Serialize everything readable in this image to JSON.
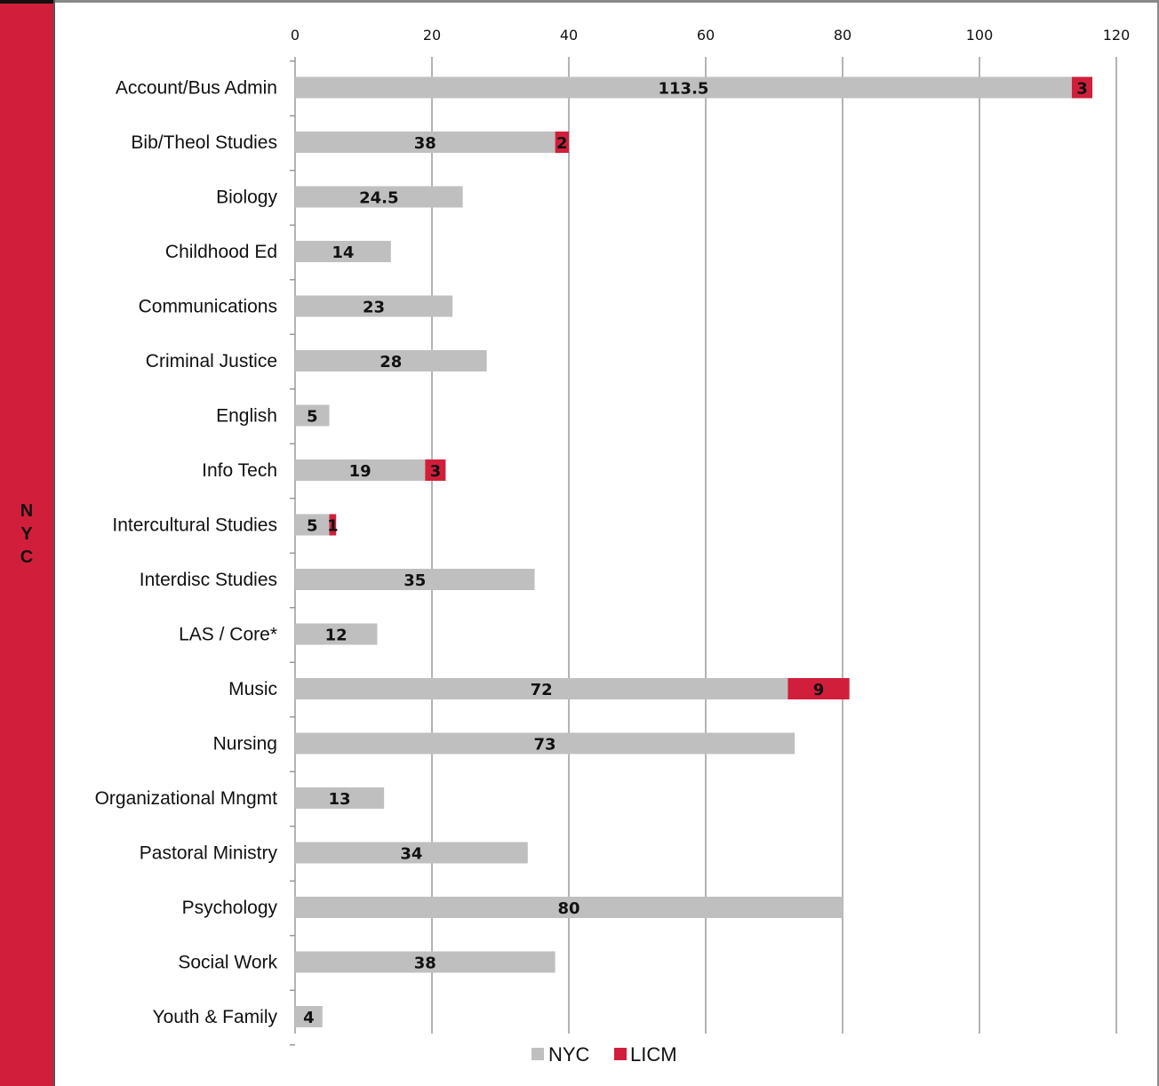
{
  "side_label": "NYC",
  "colors": {
    "NYC": "#bfbfbf",
    "LICM": "#d11f3b",
    "side_band": "#d11f3b",
    "grid": "#8c8c8c"
  },
  "chart_data": {
    "type": "bar",
    "orientation": "horizontal",
    "stacked": true,
    "categories": [
      "Account/Bus Admin",
      "Bib/Theol Studies",
      "Biology",
      "Childhood Ed",
      "Communications",
      "Criminal Justice",
      "English",
      "Info Tech",
      "Intercultural Studies",
      "Interdisc Studies",
      "LAS / Core*",
      "Music",
      "Nursing",
      "Organizational Mngmt",
      "Pastoral Ministry",
      "Psychology",
      "Social Work",
      "Youth & Family"
    ],
    "series": [
      {
        "name": "NYC",
        "values": [
          113.5,
          38,
          24.5,
          14,
          23,
          28,
          5,
          19,
          5,
          35,
          12,
          72,
          73,
          13,
          34,
          80,
          38,
          4
        ]
      },
      {
        "name": "LICM",
        "values": [
          3,
          2,
          null,
          null,
          null,
          null,
          null,
          3,
          1,
          null,
          null,
          9,
          null,
          null,
          null,
          null,
          null,
          null
        ]
      }
    ],
    "xlim": [
      0,
      120
    ],
    "x_ticks": [
      "0",
      "20",
      "40",
      "60",
      "80",
      "100",
      "120"
    ],
    "x_axis_position": "top",
    "grid": "vertical",
    "legend": "bottom-center",
    "data_labels": true
  }
}
